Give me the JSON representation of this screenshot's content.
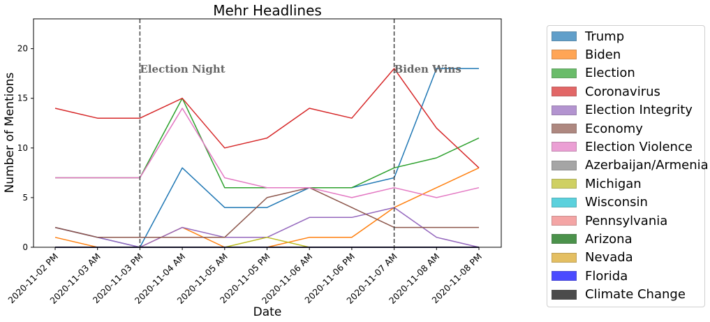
{
  "chart_data": {
    "type": "line",
    "title": "Mehr Headlines",
    "xlabel": "Date",
    "ylabel": "Number of Mentions",
    "categories": [
      "2020-11-02 PM",
      "2020-11-03 AM",
      "2020-11-03 PM",
      "2020-11-04 AM",
      "2020-11-05 AM",
      "2020-11-05 PM",
      "2020-11-06 AM",
      "2020-11-06 PM",
      "2020-11-07 AM",
      "2020-11-08 AM",
      "2020-11-08 PM"
    ],
    "ylim": [
      0,
      23
    ],
    "yticks": [
      0,
      5,
      10,
      15,
      20
    ],
    "grid": false,
    "legend_position": "outside-right",
    "annotations": [
      {
        "text": "Election Night",
        "x": "2020-11-03 PM",
        "y": 18
      },
      {
        "text": "Biden Wins",
        "x": "2020-11-07 AM",
        "y": 18
      }
    ],
    "series": [
      {
        "name": "Trump",
        "color": "#1f77b4",
        "values": [
          2,
          1,
          0,
          8,
          4,
          4,
          6,
          6,
          7,
          18,
          18
        ]
      },
      {
        "name": "Biden",
        "color": "#ff7f0e",
        "values": [
          1,
          0,
          0,
          2,
          0,
          0,
          1,
          1,
          4,
          6,
          8
        ]
      },
      {
        "name": "Election",
        "color": "#2ca02c",
        "values": [
          7,
          7,
          7,
          15,
          6,
          6,
          6,
          6,
          8,
          9,
          11
        ]
      },
      {
        "name": "Coronavirus",
        "color": "#d62728",
        "values": [
          14,
          13,
          13,
          15,
          10,
          11,
          14,
          13,
          18,
          12,
          8
        ]
      },
      {
        "name": "Election Integrity",
        "color": "#9467bd",
        "values": [
          2,
          1,
          0,
          2,
          1,
          1,
          3,
          3,
          4,
          1,
          0
        ]
      },
      {
        "name": "Economy",
        "color": "#8c564b",
        "values": [
          2,
          1,
          1,
          1,
          1,
          5,
          6,
          4,
          2,
          2,
          2
        ]
      },
      {
        "name": "Election Violence",
        "color": "#e377c2",
        "values": [
          7,
          7,
          7,
          14,
          7,
          6,
          6,
          5,
          6,
          5,
          6
        ]
      },
      {
        "name": "Azerbaijan/Armenia",
        "color": "#7f7f7f",
        "values": [
          0,
          0,
          0,
          0,
          0,
          0,
          0,
          0,
          0,
          0,
          0
        ]
      },
      {
        "name": "Michigan",
        "color": "#bcbd22",
        "values": [
          0,
          0,
          0,
          0,
          0,
          1,
          0,
          0,
          0,
          0,
          0
        ]
      },
      {
        "name": "Wisconsin",
        "color": "#17becf",
        "values": [
          0,
          0,
          0,
          0,
          0,
          0,
          0,
          0,
          0,
          0,
          0
        ]
      },
      {
        "name": "Pennsylvania",
        "color": "#f08080",
        "values": [
          0,
          0,
          0,
          0,
          0,
          0,
          0,
          0,
          0,
          0,
          0
        ]
      },
      {
        "name": "Arizona",
        "color": "#006400",
        "values": [
          0,
          0,
          0,
          0,
          0,
          0,
          0,
          0,
          0,
          0,
          0
        ]
      },
      {
        "name": "Nevada",
        "color": "#daa520",
        "values": [
          0,
          0,
          0,
          0,
          0,
          0,
          0,
          0,
          0,
          0,
          0
        ]
      },
      {
        "name": "Florida",
        "color": "#0000ff",
        "values": [
          0,
          0,
          0,
          0,
          0,
          0,
          0,
          0,
          0,
          0,
          0
        ]
      },
      {
        "name": "Climate Change",
        "color": "#000000",
        "values": [
          0,
          0,
          0,
          0,
          0,
          0,
          0,
          0,
          0,
          0,
          0
        ]
      }
    ]
  }
}
